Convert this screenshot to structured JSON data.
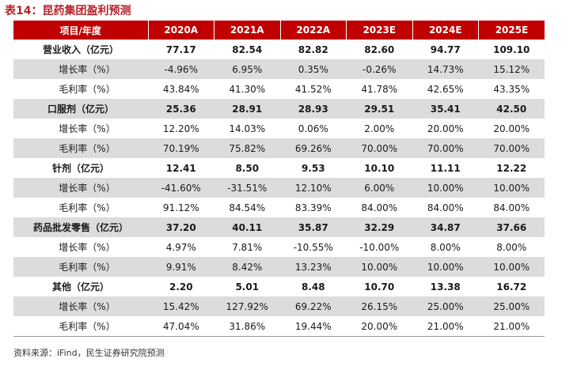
{
  "title": "表14：昆药集团盈利预测",
  "table": {
    "headers": [
      "项目/年度",
      "2020A",
      "2021A",
      "2022A",
      "2023E",
      "2024E",
      "2025E"
    ],
    "rows": [
      {
        "label": "营业收入（亿元）",
        "bold": true,
        "values": [
          "77.17",
          "82.54",
          "82.82",
          "82.60",
          "94.77",
          "109.10"
        ]
      },
      {
        "label": "增长率（%）",
        "bold": false,
        "values": [
          "-4.96%",
          "6.95%",
          "0.35%",
          "-0.26%",
          "14.73%",
          "15.12%"
        ]
      },
      {
        "label": "毛利率（%）",
        "bold": false,
        "values": [
          "43.84%",
          "41.30%",
          "41.52%",
          "41.78%",
          "42.65%",
          "43.35%"
        ]
      },
      {
        "label": "口服剂（亿元）",
        "bold": true,
        "values": [
          "25.36",
          "28.91",
          "28.93",
          "29.51",
          "35.41",
          "42.50"
        ]
      },
      {
        "label": "增长率（%）",
        "bold": false,
        "values": [
          "12.20%",
          "14.03%",
          "0.06%",
          "2.00%",
          "20.00%",
          "20.00%"
        ]
      },
      {
        "label": "毛利率（%）",
        "bold": false,
        "values": [
          "70.19%",
          "75.82%",
          "69.26%",
          "70.00%",
          "70.00%",
          "70.00%"
        ]
      },
      {
        "label": "针剂（亿元）",
        "bold": true,
        "values": [
          "12.41",
          "8.50",
          "9.53",
          "10.10",
          "11.11",
          "12.22"
        ]
      },
      {
        "label": "增长率（%）",
        "bold": false,
        "values": [
          "-41.60%",
          "-31.51%",
          "12.10%",
          "6.00%",
          "10.00%",
          "10.00%"
        ]
      },
      {
        "label": "毛利率（%）",
        "bold": false,
        "values": [
          "91.12%",
          "84.54%",
          "83.39%",
          "84.00%",
          "84.00%",
          "84.00%"
        ]
      },
      {
        "label": "药品批发零售（亿元）",
        "bold": true,
        "values": [
          "37.20",
          "40.11",
          "35.87",
          "32.29",
          "34.87",
          "37.66"
        ]
      },
      {
        "label": "增长率（%）",
        "bold": false,
        "values": [
          "4.97%",
          "7.81%",
          "-10.55%",
          "-10.00%",
          "8.00%",
          "8.00%"
        ]
      },
      {
        "label": "毛利率（%）",
        "bold": false,
        "values": [
          "9.91%",
          "8.42%",
          "13.23%",
          "10.00%",
          "10.00%",
          "10.00%"
        ]
      },
      {
        "label": "其他（亿元）",
        "bold": true,
        "values": [
          "2.20",
          "5.01",
          "8.48",
          "10.70",
          "13.38",
          "16.72"
        ]
      },
      {
        "label": "增长率（%）",
        "bold": false,
        "values": [
          "15.42%",
          "127.92%",
          "69.22%",
          "26.15%",
          "25.00%",
          "25.00%"
        ]
      },
      {
        "label": "毛利率（%）",
        "bold": false,
        "values": [
          "47.04%",
          "31.86%",
          "19.44%",
          "20.00%",
          "21.00%",
          "21.00%"
        ]
      }
    ]
  },
  "source": "资料来源：iFind，民生证券研究院预测",
  "colors": {
    "header_bg": "#c00000",
    "title": "#b7202a",
    "stripe": "#dcdcdc"
  }
}
